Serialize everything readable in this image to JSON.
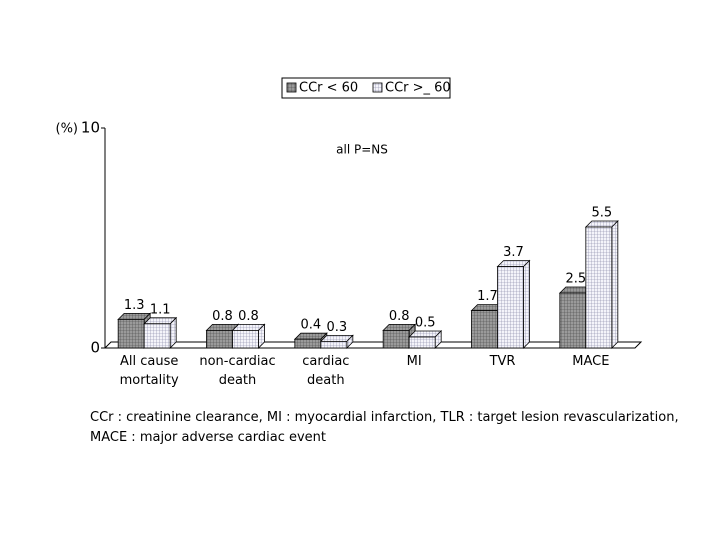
{
  "chart_data": {
    "type": "bar",
    "y_label": "(%)",
    "annotation": "all P=NS",
    "categories": [
      "All cause mortality",
      "non-cardiac death",
      "cardiac death",
      "MI",
      "TVR",
      "MACE"
    ],
    "series": [
      {
        "name": "CCr < 60",
        "color": "#9a9a9a",
        "values": [
          1.3,
          0.8,
          0.4,
          0.8,
          1.7,
          2.5
        ]
      },
      {
        "name": "CCr >_ 60",
        "color": "#f4f4fa",
        "values": [
          1.1,
          0.8,
          0.3,
          0.5,
          3.7,
          5.5
        ]
      }
    ],
    "ylim": [
      0,
      10
    ],
    "yticks": [
      0,
      10
    ],
    "grid": false,
    "legend": "top",
    "footnote": [
      "CCr : creatinine clearance, MI : myocardial infarction, TLR : target lesion revascularization,",
      "MACE : major adverse cardiac event"
    ]
  }
}
